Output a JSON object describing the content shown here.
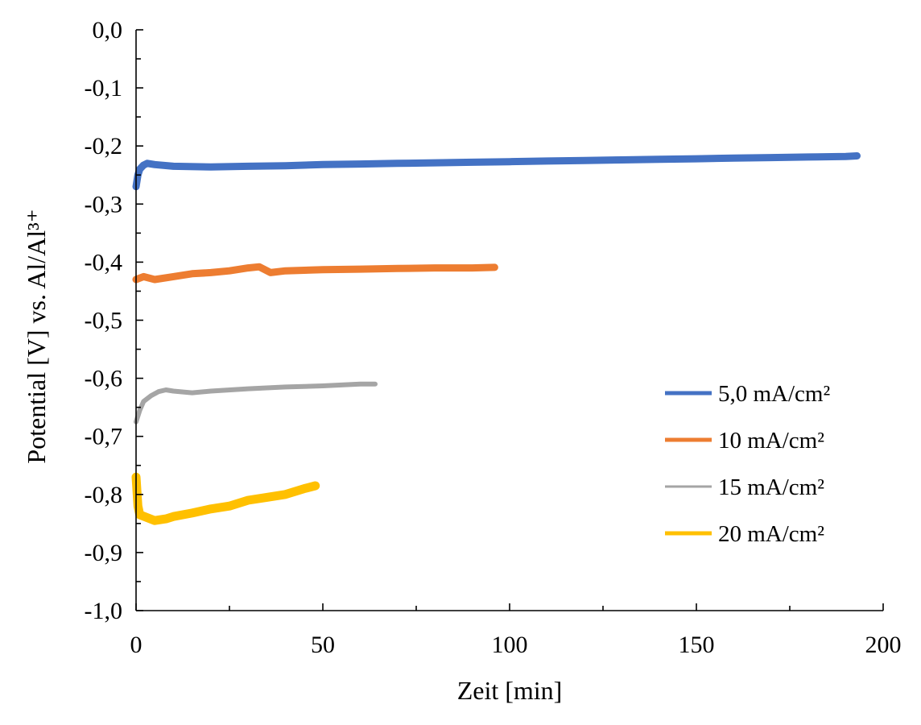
{
  "chart_data": {
    "type": "line",
    "title": "",
    "xlabel": "Zeit [min]",
    "ylabel": "Potential [V] vs. Al/Al³⁺",
    "xlim": [
      0,
      200
    ],
    "ylim": [
      -1.0,
      0.0
    ],
    "x_ticks": [
      0,
      50,
      100,
      150,
      200
    ],
    "x_tick_labels": [
      "0",
      "50",
      "100",
      "150",
      "200"
    ],
    "y_ticks": [
      0.0,
      -0.1,
      -0.2,
      -0.3,
      -0.4,
      -0.5,
      -0.6,
      -0.7,
      -0.8,
      -0.9,
      -1.0
    ],
    "y_tick_labels": [
      "0,0",
      "-0,1",
      "-0,2",
      "-0,3",
      "-0,4",
      "-0,5",
      "-0,6",
      "-0,7",
      "-0,8",
      "-0,9",
      "-1,0"
    ],
    "grid": false,
    "legend_position": "right-middle",
    "series": [
      {
        "name": "5,0 mA/cm²",
        "color": "#4472C4",
        "x": [
          0,
          0.5,
          1,
          2,
          3,
          5,
          10,
          20,
          30,
          40,
          50,
          60,
          70,
          80,
          90,
          100,
          110,
          120,
          130,
          140,
          150,
          160,
          170,
          180,
          190,
          193
        ],
        "y": [
          -0.27,
          -0.25,
          -0.24,
          -0.233,
          -0.23,
          -0.232,
          -0.235,
          -0.236,
          -0.235,
          -0.234,
          -0.232,
          -0.231,
          -0.23,
          -0.229,
          -0.228,
          -0.227,
          -0.226,
          -0.225,
          -0.224,
          -0.223,
          -0.222,
          -0.221,
          -0.22,
          -0.219,
          -0.218,
          -0.217
        ]
      },
      {
        "name": "10 mA/cm²",
        "color": "#ED7D31",
        "x": [
          0,
          2,
          5,
          10,
          15,
          20,
          25,
          30,
          33,
          36,
          40,
          50,
          60,
          70,
          80,
          90,
          96
        ],
        "y": [
          -0.43,
          -0.425,
          -0.43,
          -0.425,
          -0.42,
          -0.418,
          -0.415,
          -0.41,
          -0.408,
          -0.418,
          -0.415,
          -0.413,
          -0.412,
          -0.411,
          -0.41,
          -0.41,
          -0.409
        ]
      },
      {
        "name": "15 mA/cm²",
        "color": "#A5A5A5",
        "x": [
          0,
          1,
          2,
          4,
          6,
          8,
          10,
          15,
          20,
          30,
          40,
          50,
          60,
          64
        ],
        "y": [
          -0.675,
          -0.655,
          -0.64,
          -0.63,
          -0.623,
          -0.62,
          -0.622,
          -0.625,
          -0.622,
          -0.618,
          -0.615,
          -0.613,
          -0.61,
          -0.61
        ]
      },
      {
        "name": "20 mA/cm²",
        "color": "#FFC000",
        "x": [
          0,
          0.5,
          1,
          3,
          5,
          8,
          10,
          15,
          20,
          25,
          30,
          35,
          40,
          45,
          48
        ],
        "y": [
          -0.77,
          -0.82,
          -0.835,
          -0.84,
          -0.845,
          -0.842,
          -0.838,
          -0.832,
          -0.825,
          -0.82,
          -0.81,
          -0.805,
          -0.8,
          -0.79,
          -0.785
        ]
      }
    ]
  }
}
